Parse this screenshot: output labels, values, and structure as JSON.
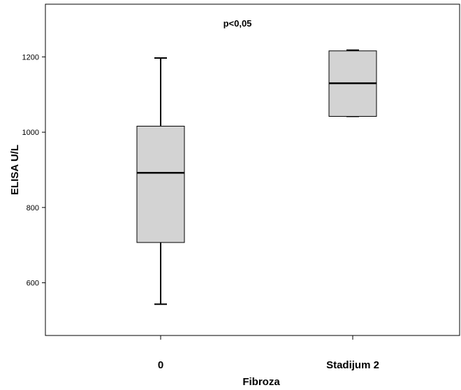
{
  "chart_data": {
    "type": "boxplot",
    "xlabel": "Fibroza",
    "ylabel": "ELISA U/L",
    "annotation": "p<0,05",
    "ylim": [
      460,
      1340
    ],
    "yticks": [
      600,
      800,
      1000,
      1200
    ],
    "grid": false,
    "categories": [
      "0",
      "Stadijum 2"
    ],
    "boxes": [
      {
        "category": "0",
        "min": 543,
        "q1": 707,
        "median": 892,
        "q3": 1016,
        "max": 1197
      },
      {
        "category": "Stadijum 2",
        "min": 1042,
        "q1": 1042,
        "median": 1130,
        "q3": 1216,
        "max": 1218
      }
    ],
    "colors": {
      "box_fill": "#d3d3d3",
      "line": "#000000"
    }
  }
}
